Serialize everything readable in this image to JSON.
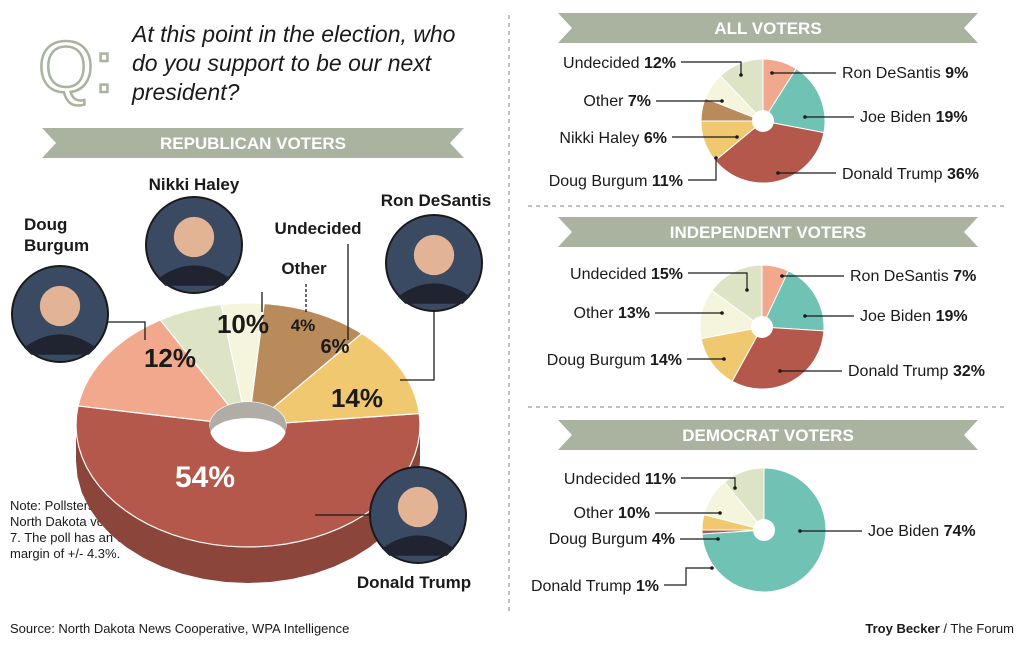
{
  "question": "At this point in the election, who do you support to be our next president?",
  "q_glyph": "Q:",
  "note": "Note: Pollsters called 517 North Dakota voters Nov. 5-7. The poll has an error margin of +/- 4.3%.",
  "source": "Source: North Dakota News Cooperative, WPA Intelligence",
  "credit_name": "Troy Becker",
  "credit_outlet": " / The Forum",
  "colors": {
    "trump": "#b3584a",
    "desantis": "#f2a88c",
    "undecided": "#dde3c5",
    "other": "#f5f4dc",
    "haley": "#b98a5a",
    "burgum": "#f0c870",
    "biden": "#6fc2b4",
    "banner": "#a9b3a0"
  },
  "chart_data": [
    {
      "type": "pie",
      "title": "REPUBLICAN VOTERS",
      "categories": [
        "Donald Trump",
        "Ron DeSantis",
        "Undecided",
        "Other",
        "Nikki Haley",
        "Doug Burgum"
      ],
      "values": [
        54,
        14,
        6,
        4,
        10,
        12
      ],
      "value_labels": [
        "54%",
        "14%",
        "6%",
        "4%",
        "10%",
        "12%"
      ]
    },
    {
      "type": "pie",
      "title": "ALL VOTERS",
      "categories": [
        "Ron DeSantis",
        "Joe Biden",
        "Donald Trump",
        "Doug Burgum",
        "Nikki Haley",
        "Other",
        "Undecided"
      ],
      "values": [
        9,
        19,
        36,
        11,
        6,
        7,
        12
      ],
      "value_labels": [
        "9%",
        "19%",
        "36%",
        "11%",
        "6%",
        "7%",
        "12%"
      ]
    },
    {
      "type": "pie",
      "title": "INDEPENDENT VOTERS",
      "categories": [
        "Ron DeSantis",
        "Joe Biden",
        "Donald Trump",
        "Doug Burgum",
        "Other",
        "Undecided"
      ],
      "values": [
        7,
        19,
        32,
        14,
        13,
        15
      ],
      "value_labels": [
        "7%",
        "19%",
        "32%",
        "14%",
        "13%",
        "15%"
      ]
    },
    {
      "type": "pie",
      "title": "DEMOCRAT VOTERS",
      "categories": [
        "Joe Biden",
        "Donald Trump",
        "Doug Burgum",
        "Other",
        "Undecided"
      ],
      "values": [
        74,
        1,
        4,
        10,
        11
      ],
      "value_labels": [
        "74%",
        "1%",
        "4%",
        "10%",
        "11%"
      ]
    }
  ]
}
